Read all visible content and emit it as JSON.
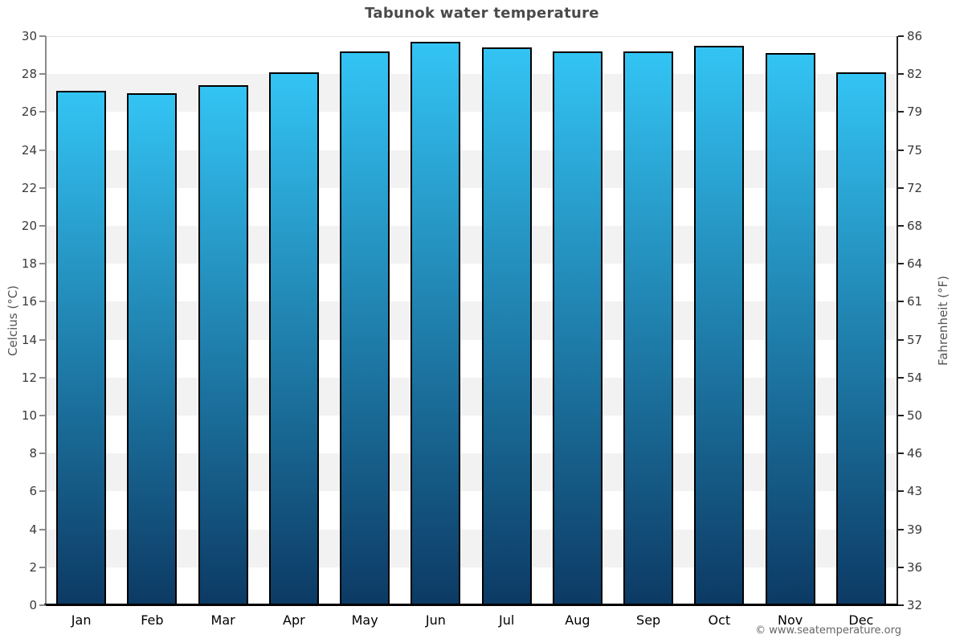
{
  "page": {
    "watermark": "© www.seatemperature.org"
  },
  "chart_data": {
    "type": "bar",
    "title": "Tabunok water temperature",
    "categories": [
      "Jan",
      "Feb",
      "Mar",
      "Apr",
      "May",
      "Jun",
      "Jul",
      "Aug",
      "Sep",
      "Oct",
      "Nov",
      "Dec"
    ],
    "values": [
      27.1,
      27.0,
      27.4,
      28.1,
      29.2,
      29.7,
      29.4,
      29.2,
      29.2,
      29.5,
      29.1,
      28.1
    ],
    "units": "°C",
    "ylabel_left": "Celcius (°C)",
    "ylabel_right": "Fahrenheit (°F)",
    "ylim": [
      0,
      30
    ],
    "yticks_celsius": [
      0,
      2,
      4,
      6,
      8,
      10,
      12,
      14,
      16,
      18,
      20,
      22,
      24,
      26,
      28,
      30
    ],
    "yticks_fahrenheit": [
      "32",
      "36",
      "39",
      "43",
      "46",
      "50",
      "54",
      "57",
      "61",
      "64",
      "68",
      "72",
      "75",
      "79",
      "82",
      "86"
    ],
    "gray_band_starts": [
      2,
      6,
      10,
      14,
      18,
      22,
      26
    ],
    "band_height": 2,
    "xlabel": "",
    "legend": "none",
    "grid": "alternating horizontal gray bands every 2°C",
    "colors": {
      "bar_gradient_top": "#33c4f4",
      "bar_gradient_bottom": "#0c3a64",
      "bar_border": "#000000",
      "band_gray": "#f2f2f2",
      "plot_background": "#ffffff",
      "axis_left_line": "#8a8a8a",
      "axis_right_line": "#222222",
      "baseline": "#000000",
      "title_color": "#4a4a4a",
      "axis_title_color": "#555555",
      "tick_label_color": "#3a3a3a",
      "month_label_color": "#000000",
      "watermark_color": "#666666"
    }
  }
}
